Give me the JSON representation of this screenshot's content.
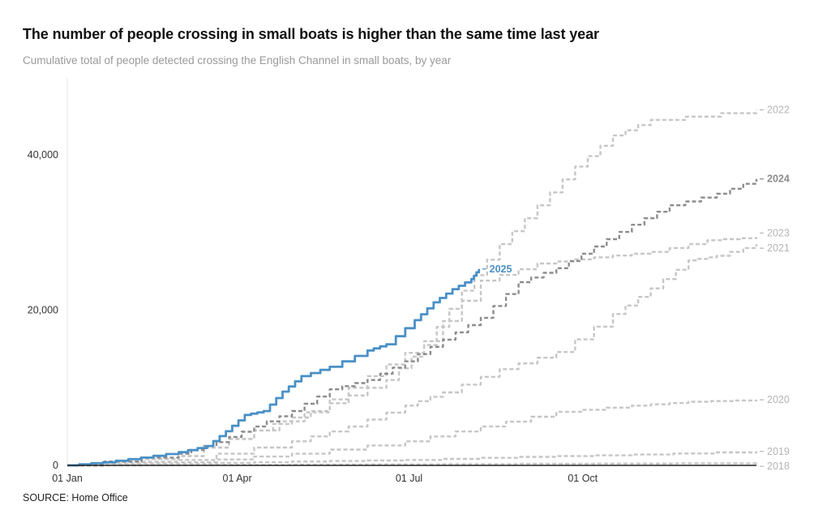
{
  "title": "The number of people crossing in small boats is higher than the same time last year",
  "subtitle": "Cumulative total of people detected crossing the English Channel in small boats, by year",
  "source": "SOURCE: Home Office",
  "chart_data": {
    "type": "line",
    "x_unit": "day of year",
    "xlim": [
      1,
      366
    ],
    "ylim": [
      0,
      50000
    ],
    "x_ticks": [
      {
        "day": 1,
        "label": "01 Jan"
      },
      {
        "day": 91,
        "label": "01 Apr"
      },
      {
        "day": 182,
        "label": "01 Jul"
      },
      {
        "day": 274,
        "label": "01 Oct"
      }
    ],
    "y_ticks": [
      {
        "value": 0,
        "label": "0"
      },
      {
        "value": 20000,
        "label": "20,000"
      },
      {
        "value": 40000,
        "label": "40,000"
      }
    ],
    "colors": {
      "highlight": "#4a90c6",
      "dark": "#8c8c8c",
      "light": "#c6c6c6",
      "axis": "#222222"
    },
    "series": [
      {
        "name": "2018",
        "style": "light",
        "points": [
          [
            1,
            0
          ],
          [
            120,
            100
          ],
          [
            240,
            200
          ],
          [
            366,
            300
          ]
        ]
      },
      {
        "name": "2019",
        "style": "light",
        "points": [
          [
            1,
            0
          ],
          [
            60,
            200
          ],
          [
            120,
            500
          ],
          [
            180,
            700
          ],
          [
            240,
            1100
          ],
          [
            300,
            1400
          ],
          [
            366,
            1800
          ]
        ]
      },
      {
        "name": "2020",
        "style": "light",
        "points": [
          [
            1,
            0
          ],
          [
            60,
            400
          ],
          [
            120,
            1500
          ],
          [
            180,
            3100
          ],
          [
            220,
            5000
          ],
          [
            260,
            6900
          ],
          [
            300,
            7700
          ],
          [
            330,
            8200
          ],
          [
            366,
            8450
          ]
        ]
      },
      {
        "name": "2021",
        "style": "light",
        "points": [
          [
            1,
            0
          ],
          [
            60,
            700
          ],
          [
            120,
            3100
          ],
          [
            150,
            5000
          ],
          [
            180,
            7700
          ],
          [
            200,
            9400
          ],
          [
            230,
            12400
          ],
          [
            260,
            14600
          ],
          [
            290,
            19500
          ],
          [
            310,
            22800
          ],
          [
            330,
            26400
          ],
          [
            345,
            27000
          ],
          [
            366,
            28500
          ]
        ]
      },
      {
        "name": "2022",
        "style": "light",
        "points": [
          [
            1,
            0
          ],
          [
            60,
            1200
          ],
          [
            100,
            4500
          ],
          [
            140,
            8000
          ],
          [
            170,
            11000
          ],
          [
            190,
            15500
          ],
          [
            210,
            22500
          ],
          [
            230,
            28500
          ],
          [
            250,
            33500
          ],
          [
            270,
            38500
          ],
          [
            290,
            42500
          ],
          [
            310,
            44500
          ],
          [
            366,
            45800
          ]
        ]
      },
      {
        "name": "2023",
        "style": "light",
        "points": [
          [
            1,
            0
          ],
          [
            60,
            1200
          ],
          [
            100,
            4500
          ],
          [
            130,
            7000
          ],
          [
            160,
            11500
          ],
          [
            190,
            16000
          ],
          [
            220,
            23800
          ],
          [
            250,
            26000
          ],
          [
            280,
            26800
          ],
          [
            310,
            27500
          ],
          [
            340,
            29000
          ],
          [
            366,
            29400
          ]
        ]
      },
      {
        "name": "2024",
        "style": "dark",
        "points": [
          [
            1,
            0
          ],
          [
            60,
            1500
          ],
          [
            80,
            3000
          ],
          [
            100,
            5000
          ],
          [
            120,
            7000
          ],
          [
            140,
            9800
          ],
          [
            160,
            11000
          ],
          [
            180,
            13400
          ],
          [
            200,
            16200
          ],
          [
            220,
            19000
          ],
          [
            240,
            23600
          ],
          [
            260,
            25400
          ],
          [
            280,
            28200
          ],
          [
            300,
            31000
          ],
          [
            320,
            33500
          ],
          [
            345,
            35000
          ],
          [
            366,
            36900
          ]
        ]
      },
      {
        "name": "2025",
        "style": "highlight",
        "points": [
          [
            1,
            0
          ],
          [
            20,
            400
          ],
          [
            40,
            1000
          ],
          [
            60,
            1700
          ],
          [
            75,
            2500
          ],
          [
            85,
            4400
          ],
          [
            95,
            6500
          ],
          [
            105,
            7000
          ],
          [
            115,
            9500
          ],
          [
            125,
            11500
          ],
          [
            140,
            12700
          ],
          [
            160,
            14800
          ],
          [
            170,
            15600
          ],
          [
            185,
            18700
          ],
          [
            195,
            21000
          ],
          [
            205,
            22700
          ],
          [
            215,
            24000
          ],
          [
            219,
            25300
          ]
        ]
      }
    ]
  }
}
